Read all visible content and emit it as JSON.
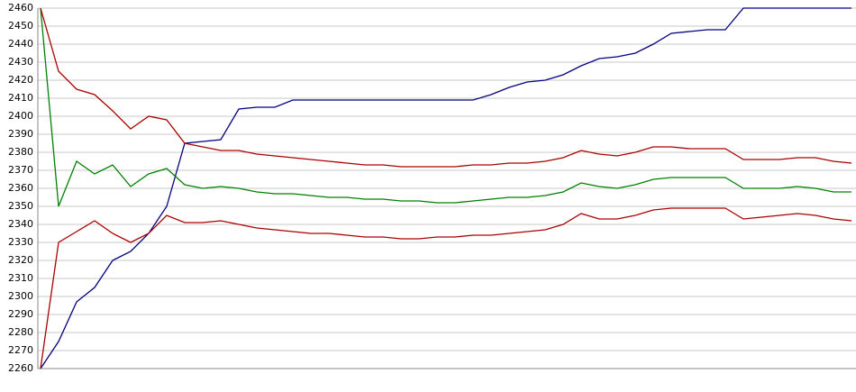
{
  "chart_data": {
    "type": "line",
    "ylim": [
      2260,
      2460
    ],
    "yticks": [
      2260,
      2270,
      2280,
      2290,
      2300,
      2310,
      2320,
      2330,
      2340,
      2350,
      2360,
      2370,
      2380,
      2390,
      2400,
      2410,
      2420,
      2430,
      2440,
      2450,
      2460
    ],
    "grid": true,
    "series": [
      {
        "color": "#000080",
        "values": [
          2260,
          2275,
          2297,
          2305,
          2320,
          2325,
          2335,
          2350,
          2385,
          2386,
          2387,
          2404,
          2405,
          2405,
          2409,
          2409,
          2409,
          2409,
          2409,
          2409,
          2409,
          2409,
          2409,
          2409,
          2409,
          2412,
          2416,
          2419,
          2420,
          2423,
          2428,
          2432,
          2433,
          2435,
          2440,
          2446,
          2447,
          2448,
          2448,
          2460,
          2460,
          2460,
          2460,
          2460,
          2460,
          2460
        ]
      },
      {
        "color": "#008000",
        "values": [
          2460,
          2350,
          2375,
          2368,
          2373,
          2361,
          2368,
          2371,
          2362,
          2360,
          2361,
          2360,
          2358,
          2357,
          2357,
          2356,
          2355,
          2355,
          2354,
          2354,
          2353,
          2353,
          2352,
          2352,
          2353,
          2354,
          2355,
          2355,
          2356,
          2358,
          2363,
          2361,
          2360,
          2362,
          2365,
          2366,
          2366,
          2366,
          2366,
          2360,
          2360,
          2360,
          2361,
          2360,
          2358,
          2358
        ]
      },
      {
        "color": "#aa0000",
        "values": [
          2460,
          2425,
          2415,
          2412,
          2403,
          2393,
          2400,
          2398,
          2385,
          2383,
          2381,
          2381,
          2379,
          2378,
          2377,
          2376,
          2375,
          2374,
          2373,
          2373,
          2372,
          2372,
          2372,
          2372,
          2373,
          2373,
          2374,
          2374,
          2375,
          2377,
          2381,
          2379,
          2378,
          2380,
          2383,
          2383,
          2382,
          2382,
          2382,
          2376,
          2376,
          2376,
          2377,
          2377,
          2375,
          2374
        ]
      },
      {
        "color": "#aa0000",
        "values": [
          2260,
          2330,
          2336,
          2342,
          2335,
          2330,
          2335,
          2345,
          2341,
          2341,
          2342,
          2340,
          2338,
          2337,
          2336,
          2335,
          2335,
          2334,
          2333,
          2333,
          2332,
          2332,
          2333,
          2333,
          2334,
          2334,
          2335,
          2336,
          2337,
          2340,
          2346,
          2343,
          2343,
          2345,
          2348,
          2349,
          2349,
          2349,
          2349,
          2343,
          2344,
          2345,
          2346,
          2345,
          2343,
          2342
        ]
      }
    ]
  }
}
